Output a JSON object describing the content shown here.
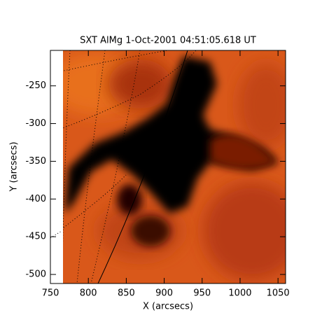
{
  "chart_data": {
    "type": "image",
    "title": "SXT AlMg  1-Oct-2001 04:51:05.618 UT",
    "x_label": "X (arcsecs)",
    "y_label": "Y (arcsecs)",
    "xlim": [
      750,
      1060
    ],
    "xticks": [
      750,
      800,
      850,
      900,
      950,
      1000,
      1050
    ],
    "ylim": [
      -512,
      -203
    ],
    "yticks": [
      -500,
      -450,
      -400,
      -350,
      -300,
      -250
    ]
  }
}
